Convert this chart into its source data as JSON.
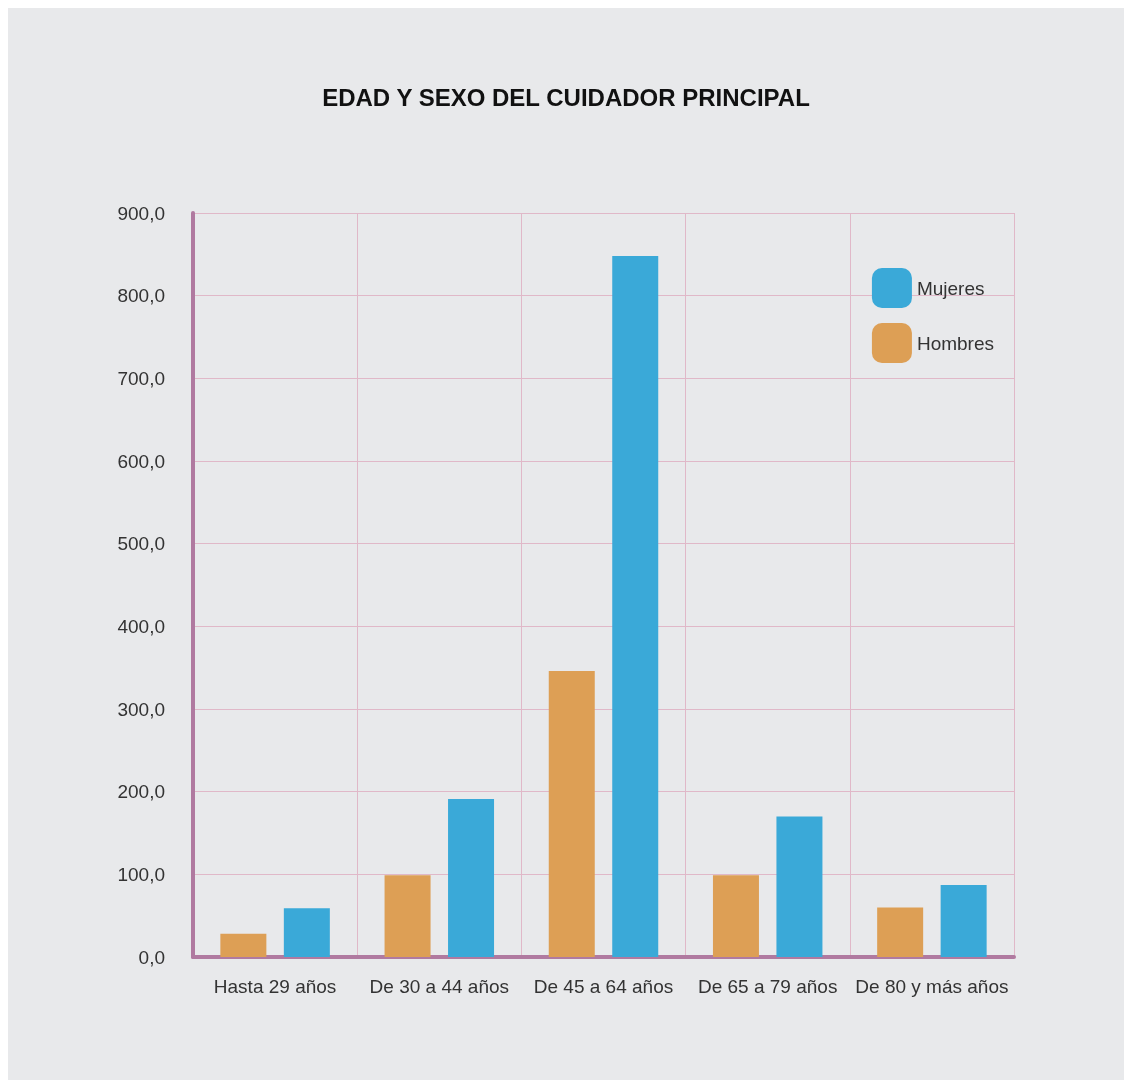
{
  "chart_data": {
    "type": "bar",
    "title": "EDAD Y SEXO DEL CUIDADOR PRINCIPAL",
    "categories": [
      "Hasta 29 años",
      "De 30 a 44 años",
      "De 45 a 64 años",
      "De 65 a 79 años",
      "De 80 y más años"
    ],
    "series": [
      {
        "name": "Hombres",
        "color": "#dd9f55",
        "values": [
          28,
          99,
          346,
          99,
          60
        ]
      },
      {
        "name": "Mujeres",
        "color": "#3aa9d8",
        "values": [
          59,
          191,
          848,
          170,
          87
        ]
      }
    ],
    "ylim": [
      0,
      900
    ],
    "yticks": [
      {
        "value": 0,
        "label": "0,0"
      },
      {
        "value": 100,
        "label": "100,0"
      },
      {
        "value": 200,
        "label": "200,0"
      },
      {
        "value": 300,
        "label": "300,0"
      },
      {
        "value": 400,
        "label": "400,0"
      },
      {
        "value": 500,
        "label": "500,0"
      },
      {
        "value": 600,
        "label": "600,0"
      },
      {
        "value": 700,
        "label": "700,0"
      },
      {
        "value": 800,
        "label": "800,0"
      },
      {
        "value": 900,
        "label": "900,0"
      }
    ],
    "grid": true,
    "legend": "top right"
  }
}
